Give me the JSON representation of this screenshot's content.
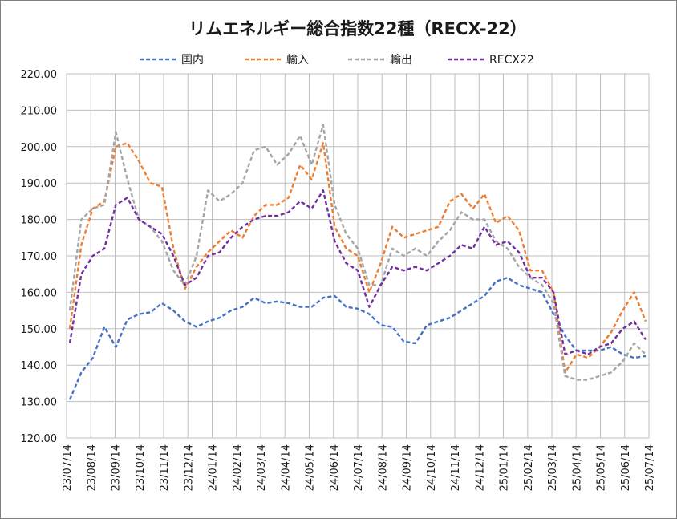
{
  "chart_data": {
    "type": "line",
    "title": "リムエネルギー総合指数22種（RECX-22）",
    "xlabel": "",
    "ylabel": "",
    "ylim": [
      120,
      220
    ],
    "yticks": [
      "220.00",
      "210.00",
      "200.00",
      "190.00",
      "180.00",
      "170.00",
      "160.00",
      "150.00",
      "140.00",
      "130.00",
      "120.00"
    ],
    "x_ticks": [
      "23/07/14",
      "23/08/14",
      "23/09/14",
      "23/10/14",
      "23/11/14",
      "23/12/14",
      "24/01/14",
      "24/02/14",
      "24/03/14",
      "24/04/14",
      "24/05/14",
      "24/06/14",
      "24/07/14",
      "24/08/14",
      "24/09/14",
      "24/10/14",
      "24/11/14",
      "24/12/14",
      "25/01/14",
      "25/02/14",
      "25/03/14",
      "25/04/14",
      "25/05/14",
      "25/06/14",
      "25/07/14"
    ],
    "grid": true,
    "legend_position": "top",
    "series": [
      {
        "name": "国内",
        "color": "#4472C4",
        "values": [
          130.5,
          138,
          142,
          150.5,
          145,
          152.5,
          154,
          154.5,
          157,
          155,
          152,
          150.5,
          152,
          153,
          155,
          156,
          158.5,
          157,
          157.5,
          157,
          156,
          156,
          158.5,
          159,
          156,
          155.5,
          154,
          151,
          150.5,
          146.5,
          146,
          151,
          152,
          153,
          155,
          157,
          159,
          163,
          164,
          162,
          161,
          160,
          154,
          148,
          144,
          144,
          144,
          145,
          143,
          142,
          142.5
        ]
      },
      {
        "name": "輸入",
        "color": "#ED7D31",
        "values": [
          150,
          173,
          183,
          185,
          200,
          201,
          196,
          190,
          189,
          172,
          161,
          167,
          171,
          174,
          177,
          175,
          181,
          184,
          184,
          186,
          195,
          191,
          201,
          178,
          172,
          170,
          160,
          168,
          178,
          175,
          176,
          177,
          178,
          185,
          187,
          183,
          187,
          179,
          181,
          177,
          166,
          166,
          160,
          138,
          143,
          142,
          145,
          149,
          155,
          160,
          152
        ]
      },
      {
        "name": "輸出",
        "color": "#A5A5A5",
        "values": [
          155,
          180,
          183,
          184,
          204,
          191,
          180,
          178,
          174,
          166,
          162,
          170,
          188,
          185,
          187,
          190,
          199,
          200,
          195,
          198,
          203,
          195,
          206,
          184,
          176,
          172,
          162,
          162,
          172,
          170,
          172,
          170,
          174,
          177,
          182,
          180,
          180,
          174,
          172,
          167,
          164,
          162,
          157,
          137,
          136,
          136,
          137,
          138,
          141,
          146,
          143
        ]
      },
      {
        "name": "RECX22",
        "color": "#7030A0",
        "values": [
          146,
          165,
          170,
          172,
          184,
          186,
          180,
          178,
          176,
          170,
          162,
          164,
          170,
          171,
          175,
          178,
          180,
          181,
          181,
          182,
          185,
          183,
          188,
          174,
          168,
          166,
          156,
          162,
          167,
          166,
          167,
          166,
          168,
          170,
          173,
          172,
          178,
          173,
          174,
          171,
          164,
          164,
          160,
          143,
          144,
          143,
          145,
          146,
          150,
          152,
          147
        ]
      }
    ]
  }
}
